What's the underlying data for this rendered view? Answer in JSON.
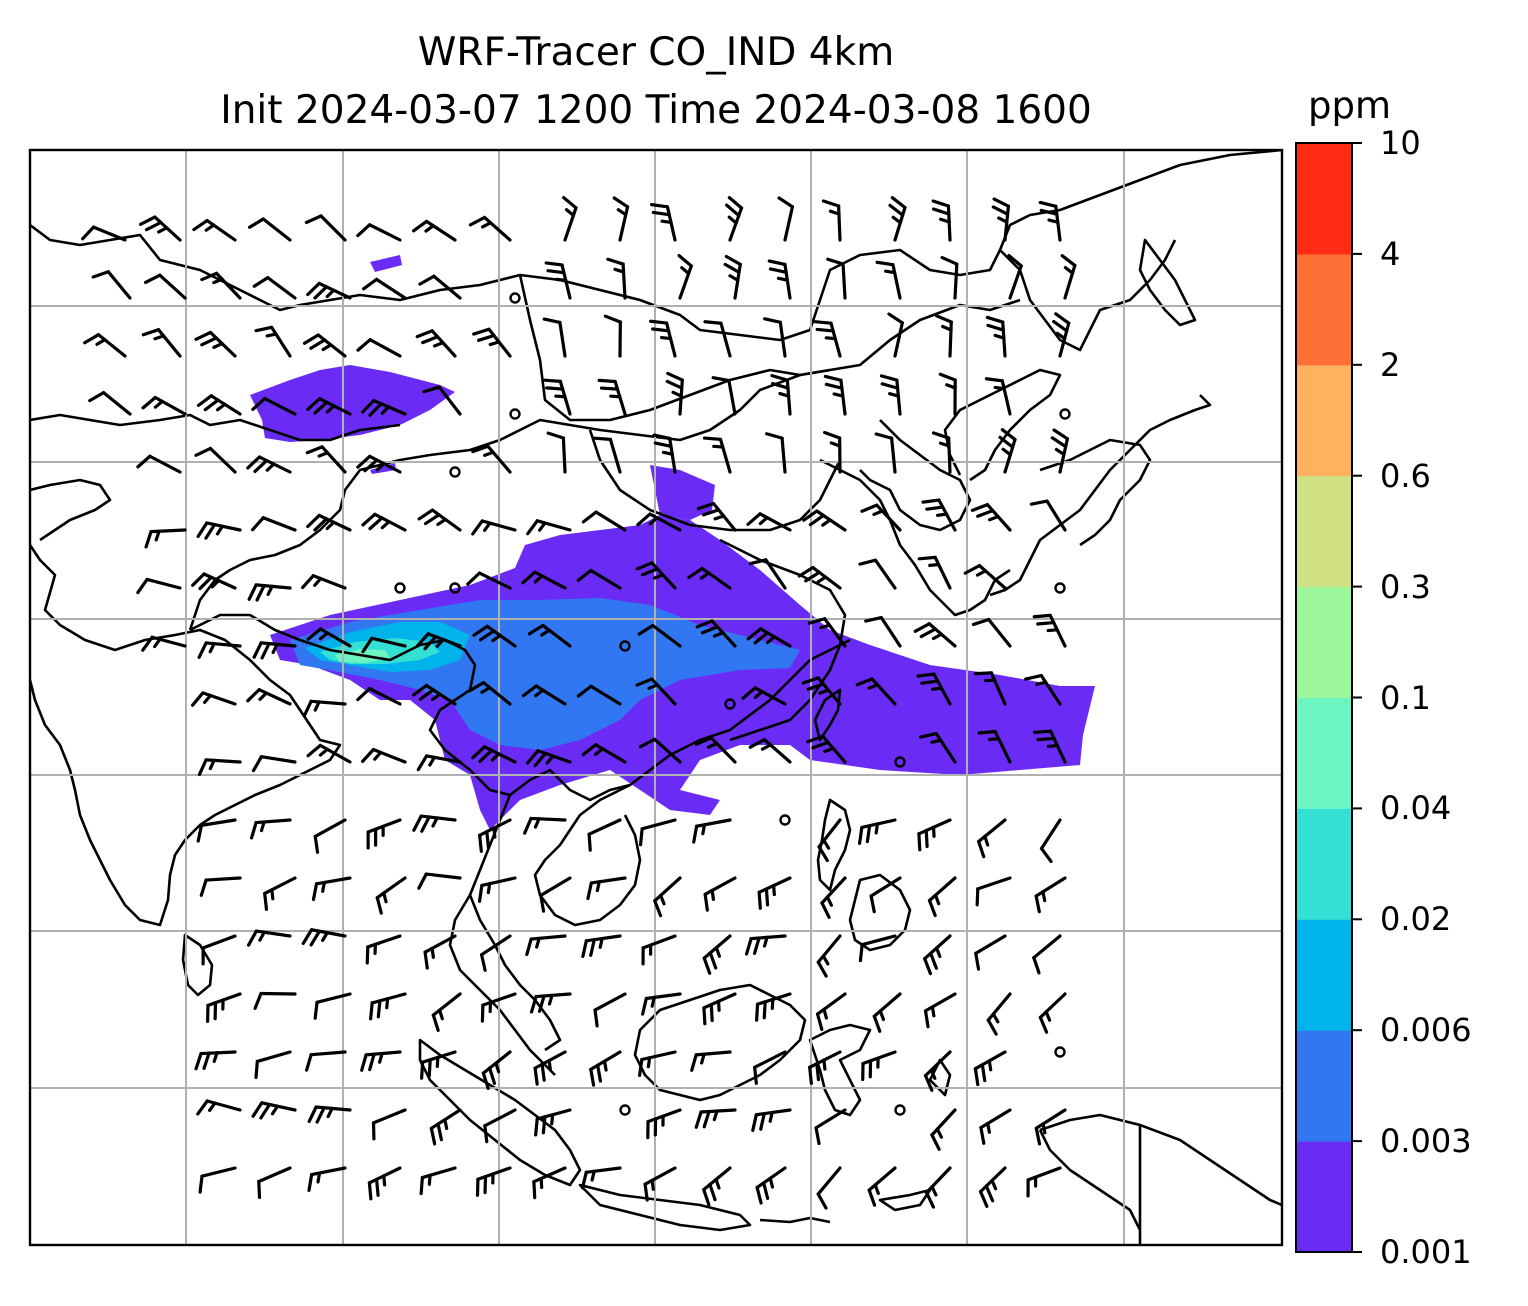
{
  "title": {
    "line1": "WRF-Tracer CO_IND 4km",
    "line2": "Init 2024-03-07 1200 Time 2024-03-08 1600"
  },
  "colorbar": {
    "unit": "ppm",
    "levels": [
      "0.001",
      "0.003",
      "0.006",
      "0.02",
      "0.04",
      "0.1",
      "0.3",
      "0.6",
      "2",
      "4",
      "10"
    ],
    "colors": [
      "#6a2cf5",
      "#3277f2",
      "#00b3ea",
      "#33e0d3",
      "#6cf5c1",
      "#9cf79a",
      "#d0e183",
      "#feb15e",
      "#ff7037",
      "#fe2c14"
    ]
  },
  "map": {
    "gridlines": true,
    "background": "#ffffff",
    "coastline_color": "#000000",
    "features": [
      "coastlines",
      "country borders",
      "wind barbs",
      "CO tracer concentration shading"
    ]
  }
}
